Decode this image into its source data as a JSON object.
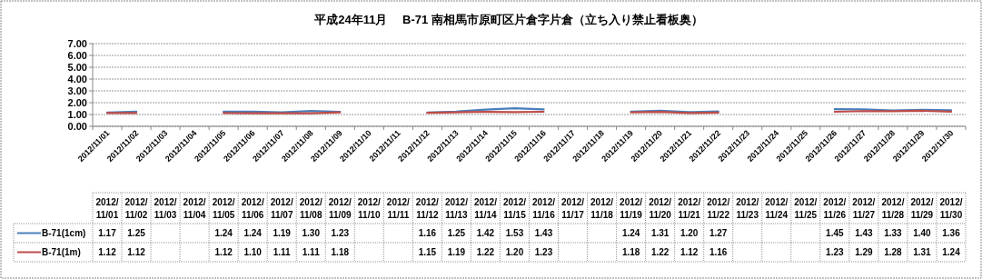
{
  "chart_data": {
    "type": "line",
    "title": "平成24年11月　 B-71 南相馬市原町区片倉字片倉（立ち入り禁止看板奥）",
    "categories": [
      "2012/11/01",
      "2012/11/02",
      "2012/11/03",
      "2012/11/04",
      "2012/11/05",
      "2012/11/06",
      "2012/11/07",
      "2012/11/08",
      "2012/11/09",
      "2012/11/10",
      "2012/11/11",
      "2012/11/12",
      "2012/11/13",
      "2012/11/14",
      "2012/11/15",
      "2012/11/16",
      "2012/11/17",
      "2012/11/18",
      "2012/11/19",
      "2012/11/20",
      "2012/11/21",
      "2012/11/22",
      "2012/11/23",
      "2012/11/24",
      "2012/11/25",
      "2012/11/26",
      "2012/11/27",
      "2012/11/28",
      "2012/11/29",
      "2012/11/30"
    ],
    "series": [
      {
        "name": "B-71(1cm)",
        "color": "#4a7ebb",
        "values": [
          1.17,
          1.25,
          null,
          null,
          1.24,
          1.24,
          1.19,
          1.3,
          1.23,
          null,
          null,
          1.16,
          1.25,
          1.42,
          1.53,
          1.43,
          null,
          null,
          1.24,
          1.31,
          1.2,
          1.27,
          null,
          null,
          null,
          1.45,
          1.43,
          1.33,
          1.4,
          1.36
        ],
        "value_labels": [
          "1.17",
          "1.25",
          null,
          null,
          "1.24",
          "1.24",
          "1.19",
          "1.30",
          "1.23",
          null,
          null,
          "1.16",
          "1.25",
          "1.42",
          "1.53",
          "1.43",
          null,
          null,
          "1.24",
          "1.31",
          "1.20",
          "1.27",
          null,
          null,
          null,
          "1.45",
          "1.43",
          "1.33",
          "1.40",
          "1.36"
        ]
      },
      {
        "name": "B-71(1m)",
        "color": "#be4b48",
        "values": [
          1.12,
          1.12,
          null,
          null,
          1.12,
          1.1,
          1.11,
          1.11,
          1.18,
          null,
          null,
          1.15,
          1.19,
          1.22,
          1.2,
          1.23,
          null,
          null,
          1.18,
          1.22,
          1.12,
          1.16,
          null,
          null,
          null,
          1.23,
          1.29,
          1.28,
          1.31,
          1.24
        ],
        "value_labels": [
          "1.12",
          "1.12",
          null,
          null,
          "1.12",
          "1.10",
          "1.11",
          "1.11",
          "1.18",
          null,
          null,
          "1.15",
          "1.19",
          "1.22",
          "1.20",
          "1.23",
          null,
          null,
          "1.18",
          "1.22",
          "1.12",
          "1.16",
          null,
          null,
          null,
          "1.23",
          "1.29",
          "1.28",
          "1.31",
          "1.24"
        ]
      }
    ],
    "ylim": [
      0,
      7
    ],
    "yticks": [
      {
        "value": 0,
        "label": "0.00"
      },
      {
        "value": 1,
        "label": "1.00"
      },
      {
        "value": 2,
        "label": "2.00"
      },
      {
        "value": 3,
        "label": "3.00"
      },
      {
        "value": 4,
        "label": "4.00"
      },
      {
        "value": 5,
        "label": "5.00"
      },
      {
        "value": 6,
        "label": "6.00"
      },
      {
        "value": 7,
        "label": "7.00"
      }
    ],
    "grid": "y",
    "legend": "bottom",
    "marker": "none",
    "line_style": "solid"
  }
}
